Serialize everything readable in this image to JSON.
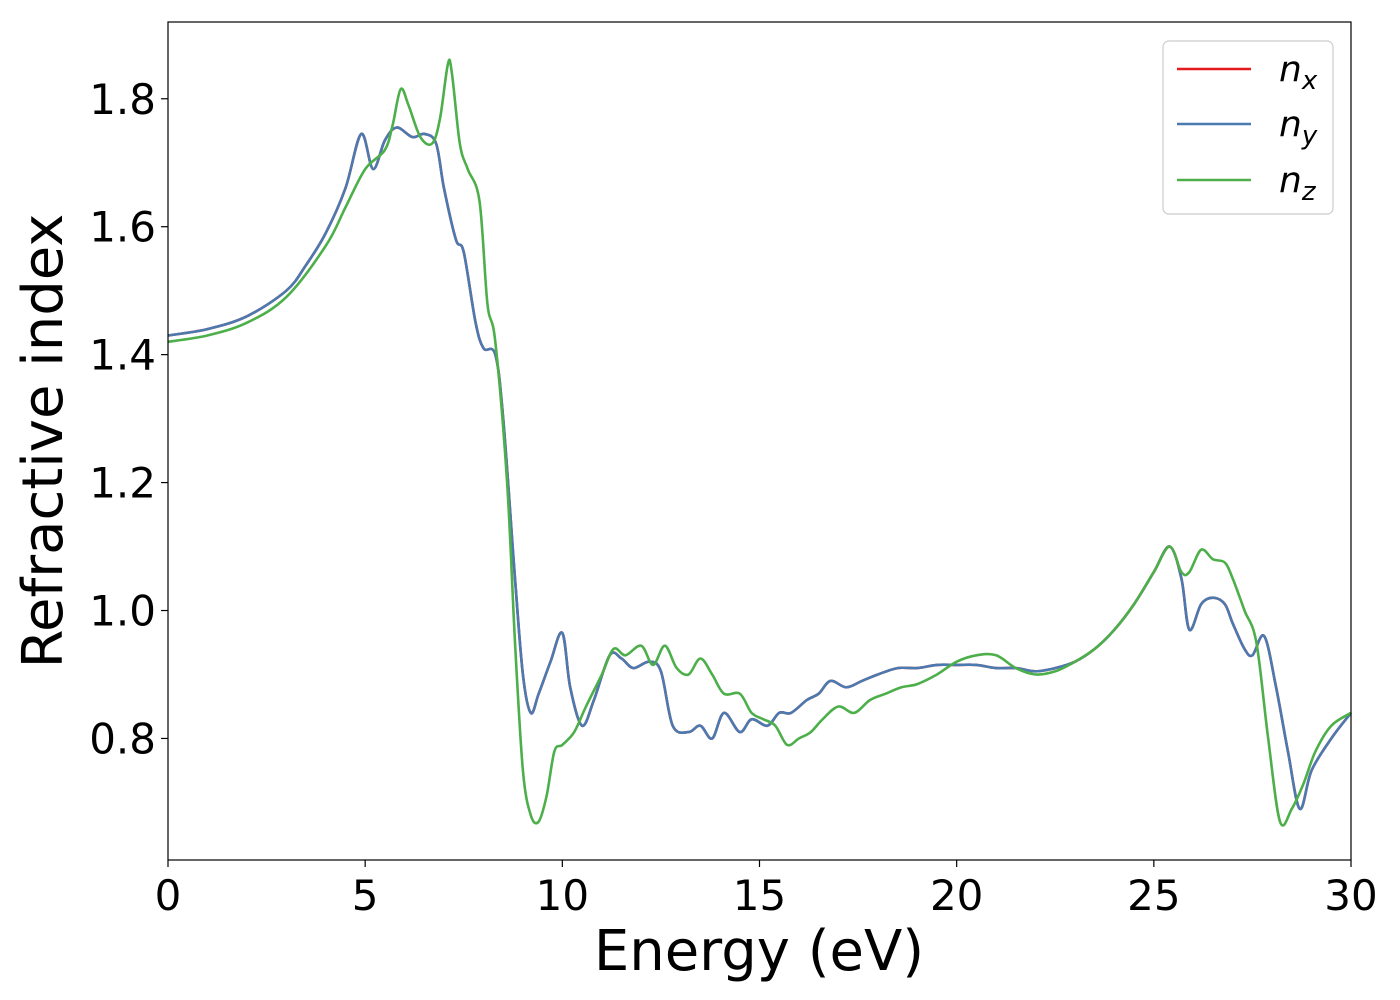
{
  "chart_data": {
    "type": "line",
    "xlabel": "Energy (eV)",
    "ylabel": "Refractive index",
    "xlim": [
      0,
      30
    ],
    "ylim": [
      0.61,
      1.92
    ],
    "xticks": [
      0,
      5,
      10,
      15,
      20,
      25,
      30
    ],
    "yticks": [
      0.8,
      1.0,
      1.2,
      1.4,
      1.6,
      1.8
    ],
    "x_tick_labels": [
      "0",
      "5",
      "10",
      "15",
      "20",
      "25",
      "30"
    ],
    "y_tick_labels": [
      "0.8",
      "1.0",
      "1.2",
      "1.4",
      "1.6",
      "1.8"
    ],
    "grid": false,
    "legend_position": "top-right",
    "series": [
      {
        "name": "n",
        "sub": "x",
        "color": "#e41a1c",
        "x": [
          0,
          1,
          2,
          3,
          3.5,
          4,
          4.5,
          4.9,
          5.2,
          5.5,
          5.8,
          6.2,
          6.5,
          6.8,
          7.0,
          7.3,
          7.5,
          7.8,
          8.0,
          8.3,
          8.5,
          8.8,
          9.0,
          9.2,
          9.4,
          9.7,
          10.0,
          10.2,
          10.5,
          10.8,
          11.2,
          11.5,
          11.8,
          12.2,
          12.5,
          12.8,
          13.2,
          13.5,
          13.8,
          14.1,
          14.5,
          14.8,
          15.2,
          15.5,
          15.8,
          16.2,
          16.5,
          16.8,
          17.2,
          17.6,
          18.0,
          18.5,
          19.0,
          19.5,
          20.0,
          20.5,
          21.0,
          21.5,
          22.0,
          22.5,
          23.0,
          23.5,
          24.0,
          24.5,
          25.0,
          25.4,
          25.7,
          25.9,
          26.2,
          26.5,
          26.8,
          27.0,
          27.3,
          27.5,
          27.8,
          28.1,
          28.4,
          28.7,
          29.0,
          29.5,
          30.0
        ],
        "y": [
          1.43,
          1.44,
          1.46,
          1.5,
          1.54,
          1.59,
          1.66,
          1.745,
          1.69,
          1.735,
          1.755,
          1.74,
          1.745,
          1.73,
          1.66,
          1.58,
          1.56,
          1.45,
          1.41,
          1.4,
          1.3,
          1.05,
          0.9,
          0.84,
          0.87,
          0.92,
          0.965,
          0.88,
          0.82,
          0.86,
          0.93,
          0.925,
          0.91,
          0.92,
          0.905,
          0.82,
          0.81,
          0.82,
          0.8,
          0.84,
          0.81,
          0.83,
          0.82,
          0.84,
          0.84,
          0.86,
          0.87,
          0.89,
          0.88,
          0.89,
          0.9,
          0.91,
          0.91,
          0.915,
          0.915,
          0.915,
          0.91,
          0.91,
          0.905,
          0.91,
          0.92,
          0.94,
          0.97,
          1.01,
          1.06,
          1.1,
          1.05,
          0.97,
          1.01,
          1.02,
          1.01,
          0.98,
          0.94,
          0.93,
          0.96,
          0.88,
          0.78,
          0.69,
          0.75,
          0.8,
          0.84
        ]
      },
      {
        "name": "n",
        "sub": "y",
        "color": "#4a7ab0",
        "x": [
          0,
          1,
          2,
          3,
          3.5,
          4,
          4.5,
          4.9,
          5.2,
          5.5,
          5.8,
          6.2,
          6.5,
          6.8,
          7.0,
          7.3,
          7.5,
          7.8,
          8.0,
          8.3,
          8.5,
          8.8,
          9.0,
          9.2,
          9.4,
          9.7,
          10.0,
          10.2,
          10.5,
          10.8,
          11.2,
          11.5,
          11.8,
          12.2,
          12.5,
          12.8,
          13.2,
          13.5,
          13.8,
          14.1,
          14.5,
          14.8,
          15.2,
          15.5,
          15.8,
          16.2,
          16.5,
          16.8,
          17.2,
          17.6,
          18.0,
          18.5,
          19.0,
          19.5,
          20.0,
          20.5,
          21.0,
          21.5,
          22.0,
          22.5,
          23.0,
          23.5,
          24.0,
          24.5,
          25.0,
          25.4,
          25.7,
          25.9,
          26.2,
          26.5,
          26.8,
          27.0,
          27.3,
          27.5,
          27.8,
          28.1,
          28.4,
          28.7,
          29.0,
          29.5,
          30.0
        ],
        "y": [
          1.43,
          1.44,
          1.46,
          1.5,
          1.54,
          1.59,
          1.66,
          1.745,
          1.69,
          1.735,
          1.755,
          1.74,
          1.745,
          1.73,
          1.66,
          1.58,
          1.56,
          1.45,
          1.41,
          1.4,
          1.3,
          1.05,
          0.9,
          0.84,
          0.87,
          0.92,
          0.965,
          0.88,
          0.82,
          0.86,
          0.93,
          0.925,
          0.91,
          0.92,
          0.905,
          0.82,
          0.81,
          0.82,
          0.8,
          0.84,
          0.81,
          0.83,
          0.82,
          0.84,
          0.84,
          0.86,
          0.87,
          0.89,
          0.88,
          0.89,
          0.9,
          0.91,
          0.91,
          0.915,
          0.915,
          0.915,
          0.91,
          0.91,
          0.905,
          0.91,
          0.92,
          0.94,
          0.97,
          1.01,
          1.06,
          1.1,
          1.05,
          0.97,
          1.01,
          1.02,
          1.01,
          0.98,
          0.94,
          0.93,
          0.96,
          0.88,
          0.78,
          0.69,
          0.75,
          0.8,
          0.84
        ]
      },
      {
        "name": "n",
        "sub": "z",
        "color": "#4daf4a",
        "x": [
          0,
          1,
          2,
          3,
          4,
          4.5,
          5.0,
          5.5,
          5.7,
          5.9,
          6.1,
          6.4,
          6.7,
          6.9,
          7.1,
          7.2,
          7.4,
          7.6,
          7.9,
          8.1,
          8.3,
          8.6,
          8.8,
          9.0,
          9.2,
          9.4,
          9.6,
          9.8,
          10.0,
          10.3,
          10.6,
          11.0,
          11.3,
          11.6,
          12.0,
          12.3,
          12.6,
          12.9,
          13.2,
          13.5,
          13.8,
          14.1,
          14.5,
          14.8,
          15.1,
          15.4,
          15.7,
          16.0,
          16.3,
          16.6,
          17.0,
          17.4,
          17.8,
          18.2,
          18.6,
          19.0,
          19.5,
          20.0,
          20.5,
          21.0,
          21.5,
          22.0,
          22.5,
          23.0,
          23.5,
          24.0,
          24.5,
          25.0,
          25.4,
          25.7,
          25.9,
          26.2,
          26.5,
          26.8,
          27.0,
          27.3,
          27.6,
          27.9,
          28.2,
          28.5,
          28.8,
          29.1,
          29.5,
          30.0
        ],
        "y": [
          1.42,
          1.43,
          1.45,
          1.49,
          1.57,
          1.63,
          1.69,
          1.72,
          1.76,
          1.815,
          1.79,
          1.74,
          1.73,
          1.77,
          1.855,
          1.84,
          1.73,
          1.69,
          1.64,
          1.48,
          1.42,
          1.2,
          0.95,
          0.75,
          0.68,
          0.67,
          0.71,
          0.78,
          0.79,
          0.81,
          0.85,
          0.9,
          0.94,
          0.93,
          0.945,
          0.915,
          0.945,
          0.91,
          0.9,
          0.925,
          0.9,
          0.87,
          0.87,
          0.84,
          0.83,
          0.82,
          0.79,
          0.8,
          0.81,
          0.83,
          0.85,
          0.84,
          0.86,
          0.87,
          0.88,
          0.885,
          0.9,
          0.92,
          0.93,
          0.93,
          0.91,
          0.9,
          0.905,
          0.92,
          0.94,
          0.97,
          1.01,
          1.06,
          1.1,
          1.06,
          1.06,
          1.095,
          1.08,
          1.075,
          1.05,
          1.0,
          0.95,
          0.8,
          0.67,
          0.69,
          0.73,
          0.78,
          0.82,
          0.84
        ]
      }
    ]
  }
}
